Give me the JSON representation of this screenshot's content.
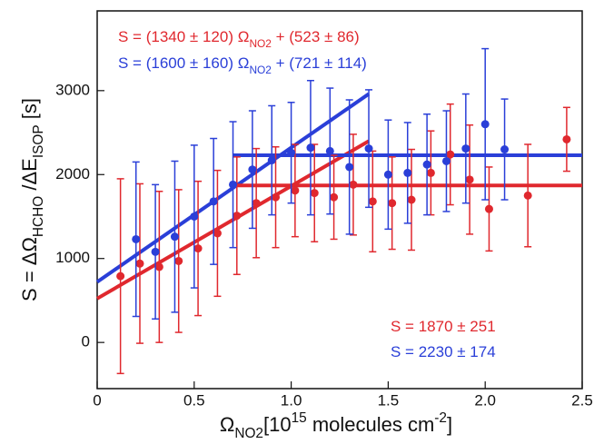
{
  "chart_data": {
    "type": "scatter",
    "xlim": [
      0,
      2.5
    ],
    "xticks": [
      0,
      0.5,
      {
        "value": 1,
        "label": "1.0"
      },
      1.5,
      {
        "value": 2,
        "label": "2.0"
      },
      2.5
    ],
    "ylim": [
      -550,
      3950
    ],
    "yticks": [
      0,
      1000,
      2000,
      3000
    ],
    "x_label": [
      "Ω",
      "NO2",
      "[10",
      "15",
      " molecules cm",
      "-2",
      "]"
    ],
    "y_label": [
      "S = ΔΩ",
      "HCHO",
      " /ΔE",
      "ISOP",
      " [s]"
    ],
    "series": [
      {
        "color": "#e0282e",
        "x": [
          0.12,
          0.22,
          0.32,
          0.42,
          0.52,
          0.62,
          0.72,
          0.82,
          0.92,
          1.02,
          1.12,
          1.22,
          1.32,
          1.42,
          1.52,
          1.62,
          1.72,
          1.82,
          1.92,
          2.02,
          2.22,
          2.42
        ],
        "values": [
          790,
          940,
          900,
          970,
          1120,
          1300,
          1510,
          1660,
          1730,
          1810,
          1780,
          1730,
          1880,
          1680,
          1660,
          1700,
          2020,
          2240,
          1940,
          1590,
          1750,
          2420
        ],
        "errors": [
          1160,
          950,
          900,
          850,
          800,
          750,
          700,
          650,
          600,
          550,
          580,
          500,
          600,
          600,
          550,
          600,
          500,
          600,
          650,
          500,
          610,
          380
        ]
      },
      {
        "color": "#2a3fd8",
        "x": [
          0.2,
          0.3,
          0.4,
          0.5,
          0.6,
          0.7,
          0.8,
          0.9,
          1.0,
          1.1,
          1.2,
          1.3,
          1.4,
          1.5,
          1.6,
          1.7,
          1.8,
          1.9,
          2.0,
          2.1
        ],
        "values": [
          1230,
          1080,
          1260,
          1500,
          1680,
          1880,
          2060,
          2170,
          2260,
          2320,
          2280,
          2090,
          2310,
          2000,
          2020,
          2120,
          2160,
          2310,
          2600,
          2300
        ],
        "errors": [
          920,
          800,
          900,
          850,
          750,
          750,
          700,
          650,
          600,
          800,
          750,
          800,
          700,
          650,
          600,
          600,
          600,
          650,
          900,
          600
        ]
      }
    ],
    "fit_lines": [
      {
        "color": "#e0282e",
        "x": [
          0,
          1.4
        ],
        "values": [
          523,
          2399
        ]
      },
      {
        "color": "#2a3fd8",
        "x": [
          0,
          1.4
        ],
        "values": [
          721,
          2961
        ]
      },
      {
        "color": "#e0282e",
        "x": [
          0.7,
          2.5
        ],
        "values": [
          1870,
          1870
        ]
      },
      {
        "color": "#2a3fd8",
        "x": [
          0.7,
          2.5
        ],
        "values": [
          2230,
          2230
        ]
      }
    ],
    "annotations": [
      {
        "color": "#e0282e",
        "parts": [
          "S = (1340 ± 120) Ω",
          "NO2",
          " + (523 ± 86)"
        ]
      },
      {
        "color": "#2a3fd8",
        "parts": [
          "S = (1600 ± 160) Ω",
          "NO2",
          " + (721 ± 114)"
        ]
      },
      {
        "color": "#e0282e",
        "parts": [
          "S = 1870 ± 251"
        ]
      },
      {
        "color": "#2a3fd8",
        "parts": [
          "S = 2230 ± 174"
        ]
      }
    ]
  }
}
